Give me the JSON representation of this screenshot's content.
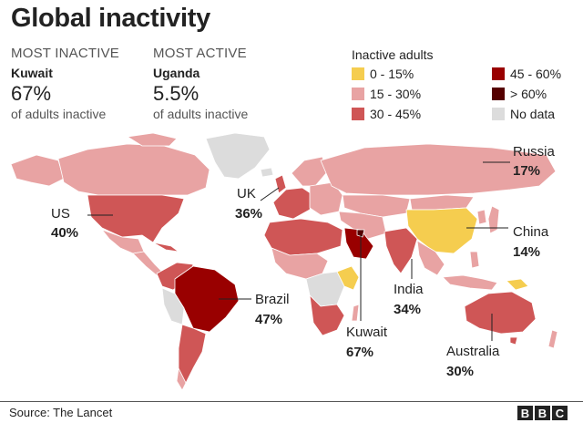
{
  "title": "Global inactivity",
  "most_inactive": {
    "heading": "MOST INACTIVE",
    "country": "Kuwait",
    "value": "67%",
    "sub": "of adults inactive"
  },
  "most_active": {
    "heading": "MOST ACTIVE",
    "country": "Uganda",
    "value": "5.5%",
    "sub": "of adults inactive"
  },
  "legend": {
    "title": "Inactive adults",
    "items": [
      {
        "label": "0 - 15%",
        "color": "#f5cd4f"
      },
      {
        "label": "15 - 30%",
        "color": "#e8a3a3"
      },
      {
        "label": "30 - 45%",
        "color": "#cf5656"
      },
      {
        "label": "45 - 60%",
        "color": "#990000"
      },
      {
        "label": "> 60%",
        "color": "#550000"
      },
      {
        "label": "No data",
        "color": "#dcdcdc"
      }
    ]
  },
  "map_labels": {
    "us": {
      "name": "US",
      "value": "40%"
    },
    "uk": {
      "name": "UK",
      "value": "36%"
    },
    "russia": {
      "name": "Russia",
      "value": "17%"
    },
    "china": {
      "name": "China",
      "value": "14%"
    },
    "brazil": {
      "name": "Brazil",
      "value": "47%"
    },
    "india": {
      "name": "India",
      "value": "34%"
    },
    "kuwait": {
      "name": "Kuwait",
      "value": "67%"
    },
    "australia": {
      "name": "Australia",
      "value": "30%"
    }
  },
  "footer": {
    "source": "Source: The Lancet",
    "logo_letters": [
      "B",
      "B",
      "C"
    ]
  }
}
